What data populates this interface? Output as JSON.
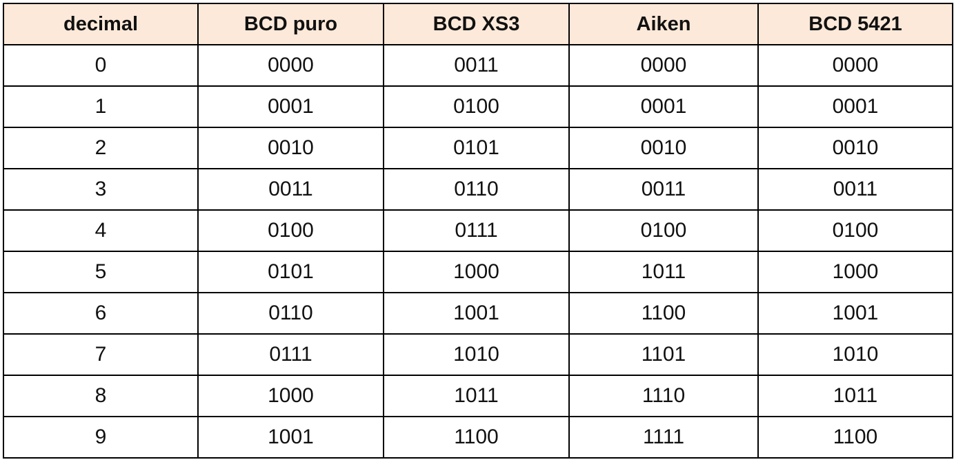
{
  "table": {
    "header_bg": "#fde9d9",
    "columns": [
      "decimal",
      "BCD puro",
      "BCD XS3",
      "Aiken",
      "BCD 5421"
    ],
    "rows": [
      [
        "0",
        "0000",
        "0011",
        "0000",
        "0000"
      ],
      [
        "1",
        "0001",
        "0100",
        "0001",
        "0001"
      ],
      [
        "2",
        "0010",
        "0101",
        "0010",
        "0010"
      ],
      [
        "3",
        "0011",
        "0110",
        "0011",
        "0011"
      ],
      [
        "4",
        "0100",
        "0111",
        "0100",
        "0100"
      ],
      [
        "5",
        "0101",
        "1000",
        "1011",
        "1000"
      ],
      [
        "6",
        "0110",
        "1001",
        "1100",
        "1001"
      ],
      [
        "7",
        "0111",
        "1010",
        "1101",
        "1010"
      ],
      [
        "8",
        "1000",
        "1011",
        "1110",
        "1011"
      ],
      [
        "9",
        "1001",
        "1100",
        "1111",
        "1100"
      ]
    ]
  }
}
